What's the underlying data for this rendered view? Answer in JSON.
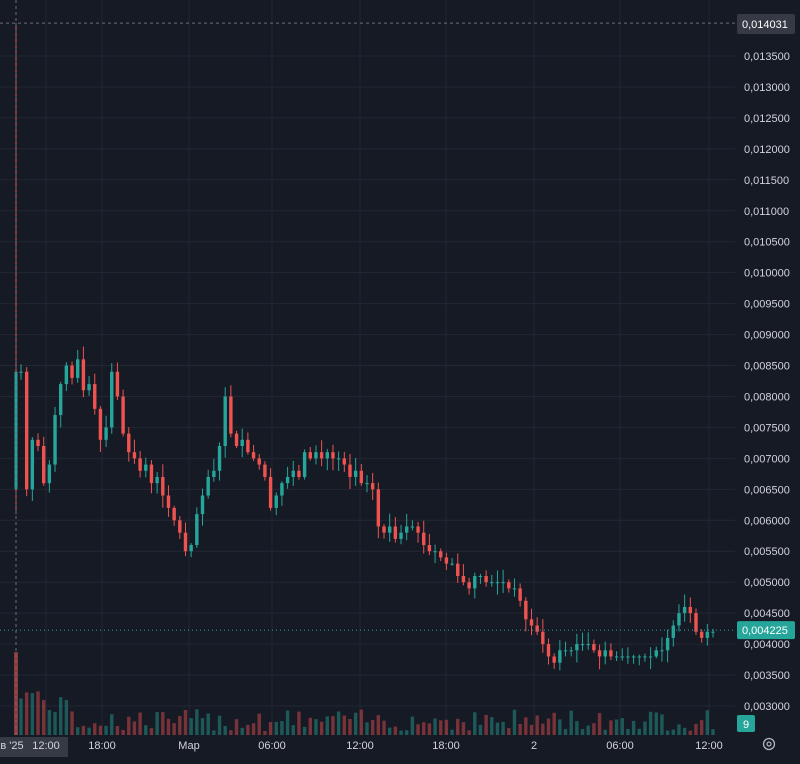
{
  "chart_data": {
    "type": "candlestick",
    "colors": {
      "up": "#26a69a",
      "down": "#ef5350",
      "background": "#161a25",
      "grid": "#232734",
      "text": "#d1d4dc",
      "crosshair": "#6a6d78"
    },
    "y_axis": {
      "ticks": [
        "0,013500",
        "0,013000",
        "0,012500",
        "0,012000",
        "0,011500",
        "0,011000",
        "0,010500",
        "0,010000",
        "0,009500",
        "0,009000",
        "0,008500",
        "0,008000",
        "0,007500",
        "0,007000",
        "0,006500",
        "0,006000",
        "0,005500",
        "0,005000",
        "0,004500",
        "0,004000",
        "0,003500",
        "0,003000"
      ],
      "ylim": [
        0.0027,
        0.0143
      ]
    },
    "x_axis": {
      "ticks": [
        "в '25",
        "12:00",
        "18:00",
        "Мар",
        "06:00",
        "12:00",
        "18:00",
        "2",
        "06:00",
        "12:00"
      ]
    },
    "crosshair_label": "0,014031",
    "last_price_label": "0,004225",
    "volume_label": "9",
    "closes": [
      0.0084,
      0.0065,
      0.0073,
      0.0072,
      0.0066,
      0.0069,
      0.0077,
      0.0082,
      0.0085,
      0.0083,
      0.0086,
      0.0081,
      0.0082,
      0.0078,
      0.0073,
      0.0075,
      0.0084,
      0.008,
      0.0074,
      0.0071,
      0.007,
      0.0068,
      0.0069,
      0.0066,
      0.0067,
      0.0064,
      0.0062,
      0.006,
      0.0058,
      0.0055,
      0.0056,
      0.0061,
      0.0064,
      0.0067,
      0.0068,
      0.0072,
      0.008,
      0.0074,
      0.0072,
      0.0073,
      0.0071,
      0.007,
      0.0069,
      0.0067,
      0.0062,
      0.0064,
      0.0066,
      0.0067,
      0.0068,
      0.0067,
      0.0071,
      0.007,
      0.0071,
      0.007,
      0.0071,
      0.007,
      0.007,
      0.0069,
      0.0067,
      0.0068,
      0.0066,
      0.0066,
      0.0065,
      0.0059,
      0.0058,
      0.0059,
      0.0057,
      0.0058,
      0.0059,
      0.0059,
      0.0058,
      0.0056,
      0.0055,
      0.0055,
      0.0054,
      0.0053,
      0.0053,
      0.0051,
      0.005,
      0.0049,
      0.0051,
      0.0051,
      0.005,
      0.005,
      0.005,
      0.005,
      0.0049,
      0.0049,
      0.0047,
      0.0044,
      0.0043,
      0.0042,
      0.004,
      0.0038,
      0.0037,
      0.0039,
      0.0039,
      0.0039,
      0.004,
      0.004,
      0.004,
      0.0039,
      0.0038,
      0.0039,
      0.0038,
      0.0038,
      0.0038,
      0.0038,
      0.0038,
      0.0038,
      0.0038,
      0.0038,
      0.0039,
      0.0039,
      0.0041,
      0.0043,
      0.0045,
      0.0046,
      0.0045,
      0.0042,
      0.0041,
      0.0042,
      0.0042
    ],
    "spike": {
      "high": 0.014031,
      "low": 0.0061,
      "open": 0.0065,
      "close": 0.0084
    }
  },
  "icons": {
    "settings": "settings-gear-icon"
  }
}
